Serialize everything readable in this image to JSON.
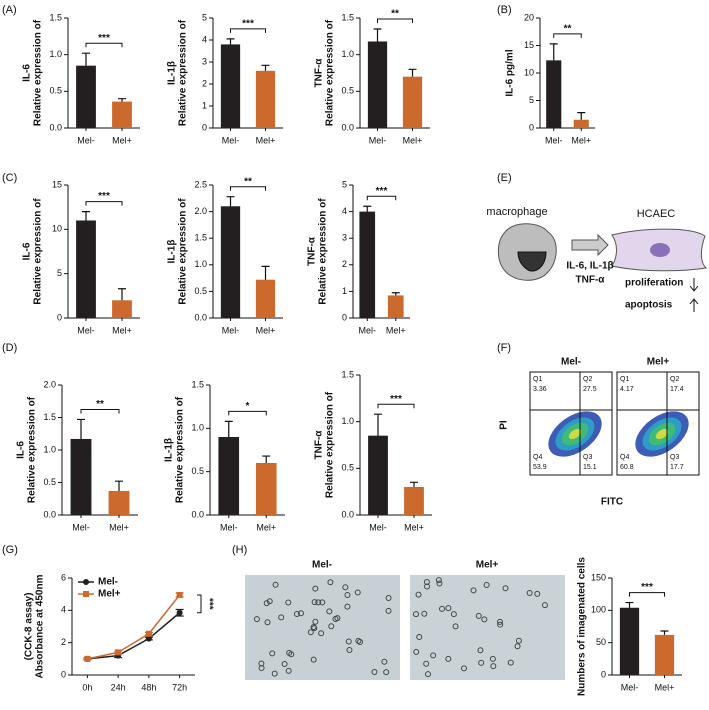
{
  "panel_labels": [
    "(A)",
    "(B)",
    "(C)",
    "(D)",
    "(E)",
    "(F)",
    "(G)",
    "(H)"
  ],
  "chart_data": [
    {
      "type": "bar",
      "ylabel": [
        "Relative expression of",
        "IL-6"
      ],
      "categories": [
        "Mel-",
        "Mel+"
      ],
      "values": [
        0.85,
        0.36
      ],
      "errors": [
        0.17,
        0.04
      ],
      "colors": [
        "#231f20",
        "#cc6a2e"
      ],
      "significance": "***",
      "ylim": [
        0,
        1.5
      ],
      "yticks": [
        {
          "value": 0,
          "label": "0.0"
        },
        0.5,
        {
          "value": 1,
          "label": "1.0"
        },
        1.5
      ]
    },
    {
      "type": "bar",
      "ylabel": [
        "Relative expression of",
        "IL-1β"
      ],
      "categories": [
        "Mel-",
        "Mel+"
      ],
      "values": [
        3.8,
        2.6
      ],
      "errors": [
        0.25,
        0.25
      ],
      "colors": [
        "#231f20",
        "#cc6a2e"
      ],
      "significance": "***",
      "ylim": [
        0,
        5
      ],
      "yticks": [
        0,
        1,
        2,
        3,
        4,
        5
      ]
    },
    {
      "type": "bar",
      "ylabel": [
        "Relative expression of",
        "TNF-α"
      ],
      "categories": [
        "Mel-",
        "Mel+"
      ],
      "values": [
        1.18,
        0.7
      ],
      "errors": [
        0.17,
        0.1
      ],
      "colors": [
        "#231f20",
        "#cc6a2e"
      ],
      "significance": "**",
      "ylim": [
        0,
        1.5
      ],
      "yticks": [
        {
          "value": 0,
          "label": "0.0"
        },
        0.5,
        {
          "value": 1,
          "label": "1.0"
        },
        1.5
      ]
    },
    {
      "type": "bar",
      "ylabel": [
        "IL-6 pg/ml"
      ],
      "categories": [
        "Mel-",
        "Mel+"
      ],
      "values": [
        12.3,
        1.5
      ],
      "errors": [
        3,
        1.3
      ],
      "colors": [
        "#231f20",
        "#cc6a2e"
      ],
      "significance": "**",
      "ylim": [
        0,
        20
      ],
      "yticks": [
        0,
        5,
        10,
        15,
        20
      ]
    },
    {
      "type": "bar",
      "ylabel": [
        "Relative expression of",
        "IL-6"
      ],
      "categories": [
        "Mel-",
        "Mel+"
      ],
      "values": [
        11,
        2
      ],
      "errors": [
        1,
        1.3
      ],
      "colors": [
        "#231f20",
        "#cc6a2e"
      ],
      "significance": "***",
      "ylim": [
        0,
        15
      ],
      "yticks": [
        0,
        5,
        10,
        15
      ]
    },
    {
      "type": "bar",
      "ylabel": [
        "Relative expression of",
        "IL-1β"
      ],
      "categories": [
        "Mel-",
        "Mel+"
      ],
      "values": [
        2.1,
        0.72
      ],
      "errors": [
        0.18,
        0.25
      ],
      "colors": [
        "#231f20",
        "#cc6a2e"
      ],
      "significance": "**",
      "ylim": [
        0,
        2.5
      ],
      "yticks": [
        {
          "value": 0,
          "label": "0.0"
        },
        0.5,
        {
          "value": 1,
          "label": "1.0"
        },
        1.5,
        {
          "value": 2,
          "label": "2.0"
        },
        2.5
      ]
    },
    {
      "type": "bar",
      "ylabel": [
        "Relative expression of",
        "TNF-α"
      ],
      "categories": [
        "Mel-",
        "Mel+"
      ],
      "values": [
        4,
        0.85
      ],
      "errors": [
        0.2,
        0.1
      ],
      "colors": [
        "#231f20",
        "#cc6a2e"
      ],
      "significance": "***",
      "ylim": [
        0,
        5
      ],
      "yticks": [
        0,
        1,
        2,
        3,
        4,
        5
      ]
    },
    {
      "type": "bar",
      "ylabel": [
        "Relative expression of",
        "IL-6"
      ],
      "categories": [
        "Mel-",
        "Mel+"
      ],
      "values": [
        1.17,
        0.37
      ],
      "errors": [
        0.3,
        0.15
      ],
      "colors": [
        "#231f20",
        "#cc6a2e"
      ],
      "significance": "**",
      "ylim": [
        0,
        2
      ],
      "yticks": [
        {
          "value": 0,
          "label": "0.0"
        },
        0.5,
        {
          "value": 1,
          "label": "1.0"
        },
        1.5,
        {
          "value": 2,
          "label": "2.0"
        }
      ]
    },
    {
      "type": "bar",
      "ylabel": [
        "Relative expression of",
        "IL-1β"
      ],
      "categories": [
        "Mel-",
        "Mel+"
      ],
      "values": [
        0.9,
        0.6
      ],
      "errors": [
        0.18,
        0.08
      ],
      "colors": [
        "#231f20",
        "#cc6a2e"
      ],
      "significance": "*",
      "ylim": [
        0,
        1.5
      ],
      "yticks": [
        {
          "value": 0,
          "label": "0.0"
        },
        0.5,
        {
          "value": 1,
          "label": "1.0"
        },
        1.5
      ]
    },
    {
      "type": "bar",
      "ylabel": [
        "Relative expression of",
        "TNF-α"
      ],
      "categories": [
        "Mel-",
        "Mel+"
      ],
      "values": [
        0.85,
        0.3
      ],
      "errors": [
        0.23,
        0.05
      ],
      "colors": [
        "#231f20",
        "#cc6a2e"
      ],
      "significance": "***",
      "ylim": [
        0,
        1.5
      ],
      "yticks": [
        {
          "value": 0,
          "label": "0.0"
        },
        0.5,
        {
          "value": 1,
          "label": "1.0"
        },
        1.5
      ]
    },
    {
      "type": "line",
      "ylabel": [
        "Absorbance at 450nm",
        "(CCK-8 assay)"
      ],
      "categories": [
        "0h",
        "24h",
        "48h",
        "72h"
      ],
      "series": [
        {
          "name": "Mel-",
          "color": "#231f20",
          "values": [
            1.0,
            1.2,
            2.25,
            3.85
          ],
          "errors": [
            0.05,
            0.12,
            0.08,
            0.2
          ]
        },
        {
          "name": "Mel+",
          "color": "#cc6a2e",
          "values": [
            1.0,
            1.4,
            2.55,
            4.95
          ],
          "errors": [
            0.05,
            0.08,
            0.08,
            0.12
          ]
        }
      ],
      "significance": "***",
      "legend": "upper left",
      "ylim": [
        0,
        6
      ],
      "yticks": [
        0,
        2,
        4,
        6
      ]
    },
    {
      "type": "bar",
      "ylabel": [
        "Numbers of imagenated cells"
      ],
      "categories": [
        "Mel-",
        "Mel+"
      ],
      "values": [
        104,
        62
      ],
      "errors": [
        8,
        6
      ],
      "colors": [
        "#231f20",
        "#cc6a2e"
      ],
      "significance": "***",
      "ylim": [
        0,
        150
      ],
      "yticks": [
        0,
        50,
        100,
        150
      ]
    }
  ],
  "diagram": {
    "source": "macrophage",
    "target": "HCAEC",
    "signal": [
      "IL-6, IL-1β",
      "TNF-α"
    ],
    "effects": [
      "proliferation",
      "apoptosis"
    ]
  },
  "flow_cytometry": {
    "xlabel": "FITC",
    "ylabel": "PI",
    "plots": [
      {
        "title": "Mel-",
        "quadrants": [
          {
            "name": "Q1",
            "value": 3.36
          },
          {
            "name": "Q2",
            "value": 27.5
          },
          {
            "name": "Q4",
            "value": 53.9
          },
          {
            "name": "Q3",
            "value": 15.1
          }
        ]
      },
      {
        "title": "Mel+",
        "quadrants": [
          {
            "name": "Q1",
            "value": 4.17
          },
          {
            "name": "Q2",
            "value": 17.4
          },
          {
            "name": "Q4",
            "value": 60.8
          },
          {
            "name": "Q3",
            "value": 17.7
          }
        ]
      }
    ]
  },
  "images": {
    "titles": [
      "Mel-",
      "Mel+"
    ]
  }
}
